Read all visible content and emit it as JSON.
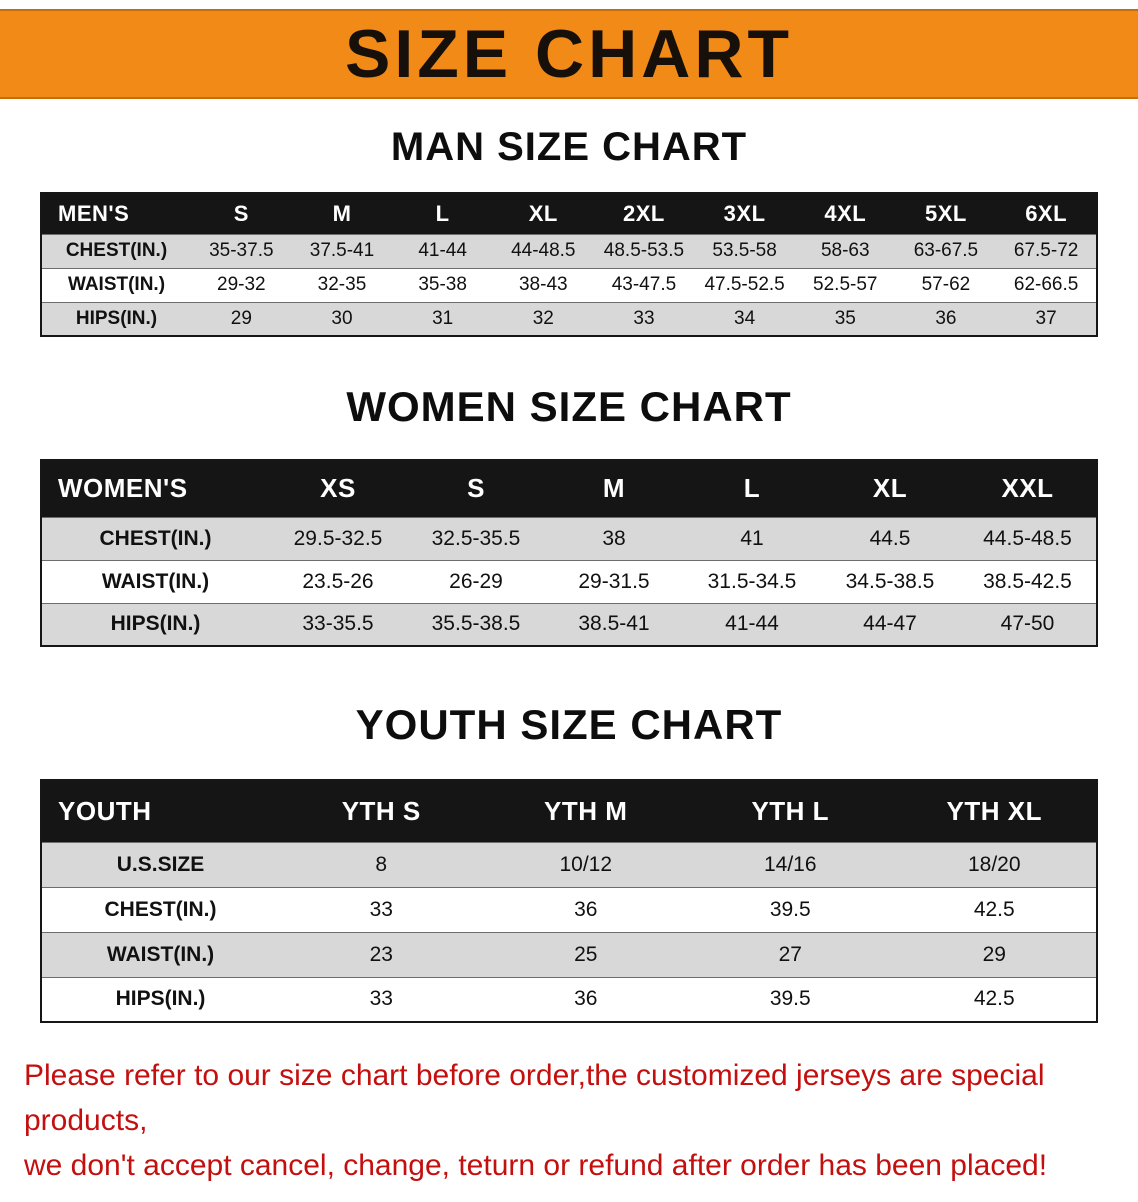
{
  "banner": {
    "title": "SIZE CHART"
  },
  "colors": {
    "banner_bg": "#f28a18",
    "banner_edge": "#c76e06",
    "header_bg": "#151515",
    "row_alt": "#d8d8d8",
    "note_red": "#c40f0f"
  },
  "sections": [
    {
      "id": "men",
      "heading": "MAN SIZE CHART",
      "table": {
        "header": [
          "MEN'S",
          "S",
          "M",
          "L",
          "XL",
          "2XL",
          "3XL",
          "4XL",
          "5XL",
          "6XL"
        ],
        "rows": [
          [
            "CHEST(IN.)",
            "35-37.5",
            "37.5-41",
            "41-44",
            "44-48.5",
            "48.5-53.5",
            "53.5-58",
            "58-63",
            "63-67.5",
            "67.5-72"
          ],
          [
            "WAIST(IN.)",
            "29-32",
            "32-35",
            "35-38",
            "38-43",
            "43-47.5",
            "47.5-52.5",
            "52.5-57",
            "57-62",
            "62-66.5"
          ],
          [
            "HIPS(IN.)",
            "29",
            "30",
            "31",
            "32",
            "33",
            "34",
            "35",
            "36",
            "37"
          ]
        ]
      }
    },
    {
      "id": "women",
      "heading": "WOMEN SIZE CHART",
      "table": {
        "header": [
          "WOMEN'S",
          "XS",
          "S",
          "M",
          "L",
          "XL",
          "XXL"
        ],
        "rows": [
          [
            "CHEST(IN.)",
            "29.5-32.5",
            "32.5-35.5",
            "38",
            "41",
            "44.5",
            "44.5-48.5"
          ],
          [
            "WAIST(IN.)",
            "23.5-26",
            "26-29",
            "29-31.5",
            "31.5-34.5",
            "34.5-38.5",
            "38.5-42.5"
          ],
          [
            "HIPS(IN.)",
            "33-35.5",
            "35.5-38.5",
            "38.5-41",
            "41-44",
            "44-47",
            "47-50"
          ]
        ]
      }
    },
    {
      "id": "youth",
      "heading": "YOUTH SIZE CHART",
      "table": {
        "header": [
          "YOUTH",
          "YTH S",
          "YTH M",
          "YTH L",
          "YTH XL"
        ],
        "rows": [
          [
            "U.S.SIZE",
            "8",
            "10/12",
            "14/16",
            "18/20"
          ],
          [
            "CHEST(IN.)",
            "33",
            "36",
            "39.5",
            "42.5"
          ],
          [
            "WAIST(IN.)",
            "23",
            "25",
            "27",
            "29"
          ],
          [
            "HIPS(IN.)",
            "33",
            "36",
            "39.5",
            "42.5"
          ]
        ]
      }
    }
  ],
  "footer": {
    "line1": "Please refer to our size chart before order,the customized jerseys are special products,",
    "line2": "we don't accept cancel, change, teturn or refund after order has been placed!"
  }
}
